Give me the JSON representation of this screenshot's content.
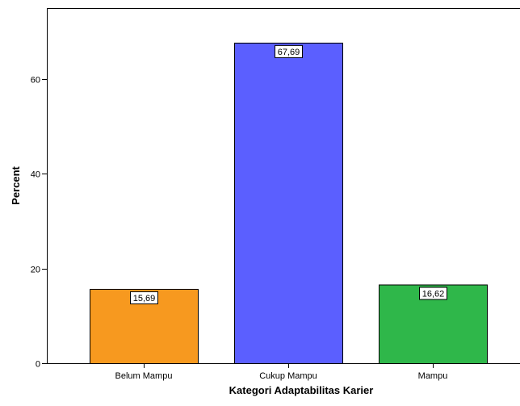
{
  "chart_data": {
    "type": "bar",
    "title": "",
    "xlabel": "Kategori Adaptabilitas Karier",
    "ylabel": "Percent",
    "categories": [
      "Belum Mampu",
      "Cukup Mampu",
      "Mampu"
    ],
    "values": [
      15.69,
      67.69,
      16.62
    ],
    "data_labels": [
      "15,69",
      "67,69",
      "16,62"
    ],
    "bar_colors": [
      "#f7991f",
      "#5b5fff",
      "#2fb74a"
    ],
    "ylim": [
      0,
      75
    ],
    "yticks": [
      0,
      20,
      40,
      60
    ],
    "ytick_labels": [
      "0",
      "20",
      "40",
      "60"
    ],
    "grid": false,
    "legend": "none"
  }
}
